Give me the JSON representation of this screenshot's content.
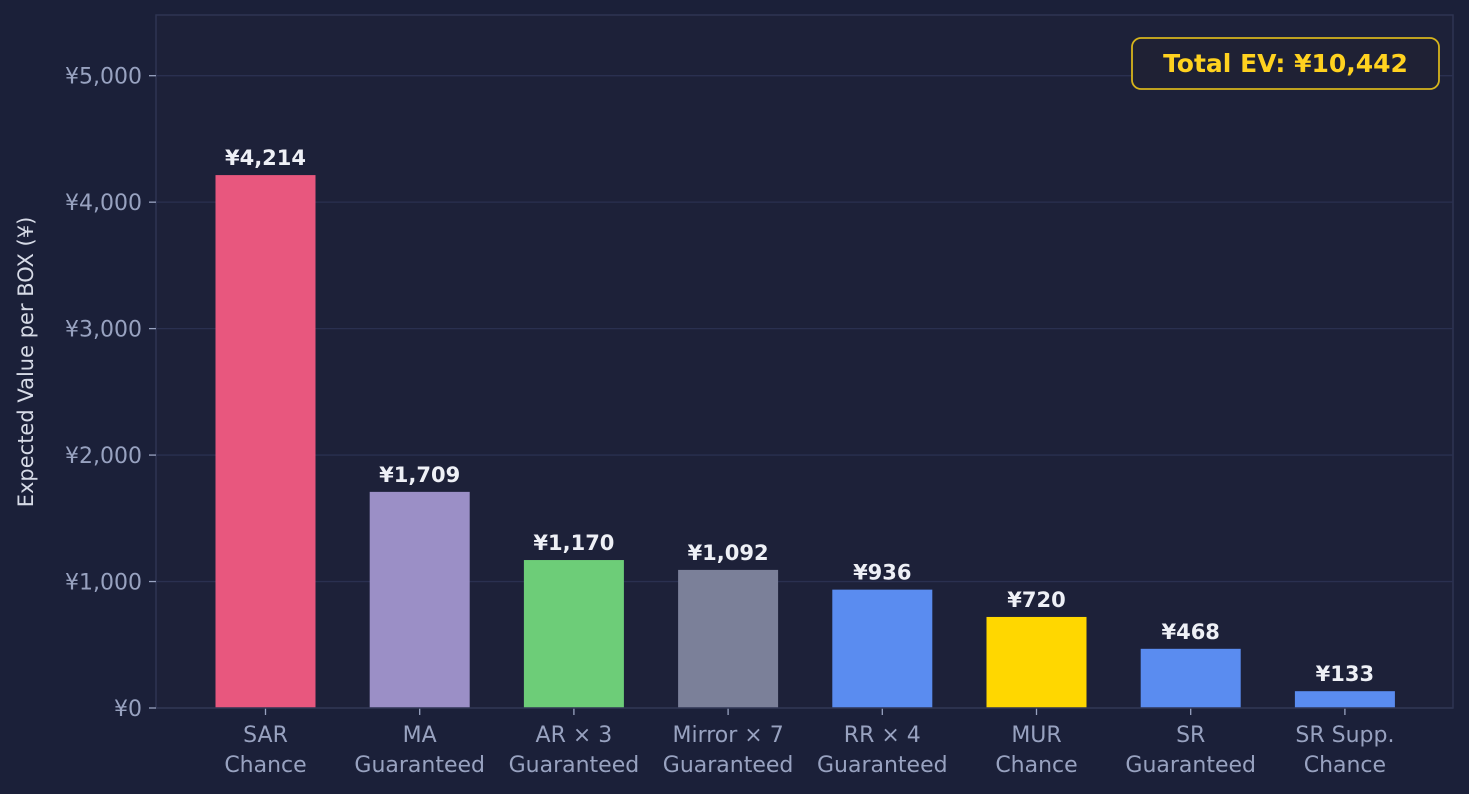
{
  "chart_data": {
    "type": "bar",
    "ylabel": "Expected Value per BOX (¥)",
    "ylim": [
      0,
      5480
    ],
    "yticks": [
      0,
      1000,
      2000,
      3000,
      4000,
      5000
    ],
    "ytick_labels": [
      "¥0",
      "¥1,000",
      "¥2,000",
      "¥3,000",
      "¥4,000",
      "¥5,000"
    ],
    "grid": true,
    "categories": [
      [
        "SAR",
        "Chance"
      ],
      [
        "MA",
        "Guaranteed"
      ],
      [
        "AR × 3",
        "Guaranteed"
      ],
      [
        "Mirror × 7",
        "Guaranteed"
      ],
      [
        "RR × 4",
        "Guaranteed"
      ],
      [
        "MUR",
        "Chance"
      ],
      [
        "SR",
        "Guaranteed"
      ],
      [
        "SR Supp.",
        "Chance"
      ]
    ],
    "values": [
      4214,
      1709,
      1170,
      1092,
      936,
      720,
      468,
      133
    ],
    "value_labels": [
      "¥4,214",
      "¥1,709",
      "¥1,170",
      "¥1,092",
      "¥936",
      "¥720",
      "¥468",
      "¥133"
    ],
    "colors": [
      "#e8577e",
      "#9b8fc6",
      "#6dcd78",
      "#7b8099",
      "#5a8cf0",
      "#ffd700",
      "#5a8cf0",
      "#5a8cf0"
    ],
    "annotation": "Total EV: ¥10,442",
    "annotation_color": "#ffd21f"
  }
}
